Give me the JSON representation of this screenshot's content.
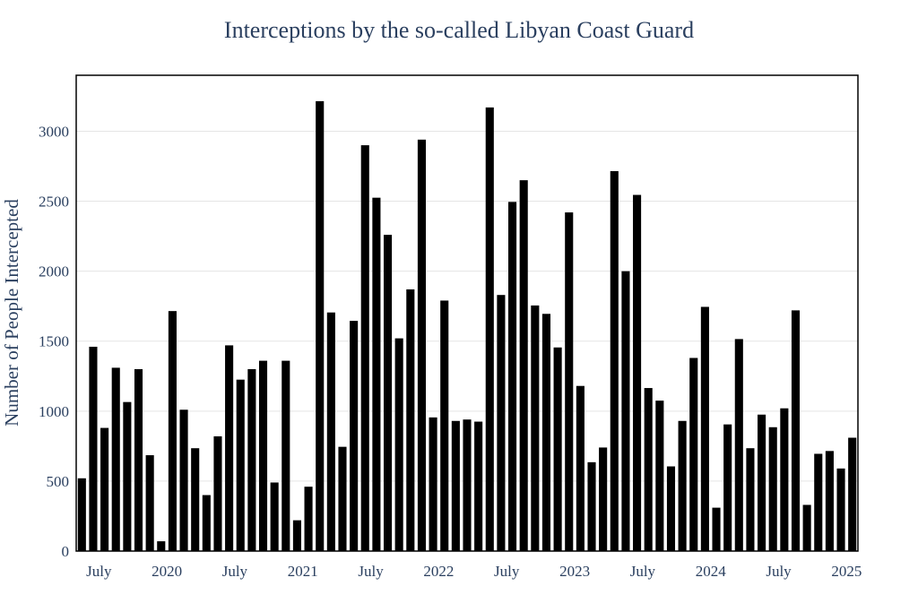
{
  "chart_data": {
    "type": "bar",
    "title": "Interceptions by the so-called Libyan Coast Guard",
    "xlabel": "",
    "ylabel": "Number of People Intercepted",
    "x_start": "2019-05",
    "x_tick_labels": [
      "July",
      "2020",
      "July",
      "2021",
      "July",
      "2022",
      "July",
      "2023",
      "July",
      "2024",
      "July",
      "2025"
    ],
    "y_ticks": [
      0,
      500,
      1000,
      1500,
      2000,
      2500,
      3000
    ],
    "ylim": [
      0,
      3400
    ],
    "grid": true,
    "legend": "none",
    "bar_color": "#000000",
    "categories": [
      "2019-05",
      "2019-06",
      "2019-07",
      "2019-08",
      "2019-09",
      "2019-10",
      "2019-11",
      "2019-12",
      "2020-01",
      "2020-02",
      "2020-03",
      "2020-04",
      "2020-05",
      "2020-06",
      "2020-07",
      "2020-08",
      "2020-09",
      "2020-10",
      "2020-11",
      "2020-12",
      "2021-01",
      "2021-02",
      "2021-03",
      "2021-04",
      "2021-05",
      "2021-06",
      "2021-07",
      "2021-08",
      "2021-09",
      "2021-10",
      "2021-11",
      "2021-12",
      "2022-01",
      "2022-02",
      "2022-03",
      "2022-04",
      "2022-05",
      "2022-06",
      "2022-07",
      "2022-08",
      "2022-09",
      "2022-10",
      "2022-11",
      "2022-12",
      "2023-01",
      "2023-02",
      "2023-03",
      "2023-04",
      "2023-05",
      "2023-06",
      "2023-07",
      "2023-08",
      "2023-09",
      "2023-10",
      "2023-11",
      "2023-12",
      "2024-01",
      "2024-02",
      "2024-03",
      "2024-04",
      "2024-05",
      "2024-06",
      "2024-07",
      "2024-08",
      "2024-09",
      "2024-10",
      "2024-11",
      "2024-12",
      "2025-01"
    ],
    "values": [
      520,
      1460,
      880,
      1310,
      1065,
      1300,
      685,
      70,
      1715,
      1010,
      735,
      400,
      820,
      1470,
      1225,
      1300,
      1360,
      490,
      1360,
      220,
      460,
      3215,
      1705,
      745,
      1645,
      2900,
      2525,
      2260,
      1520,
      1870,
      2940,
      955,
      1790,
      930,
      940,
      925,
      3170,
      1830,
      2495,
      2650,
      1755,
      1695,
      1455,
      2420,
      1180,
      635,
      740,
      2715,
      2000,
      2545,
      1165,
      1075,
      605,
      930,
      1380,
      1745,
      310,
      905,
      1515,
      735,
      975,
      885,
      1020,
      1720,
      330,
      695,
      715,
      590,
      810
    ]
  }
}
